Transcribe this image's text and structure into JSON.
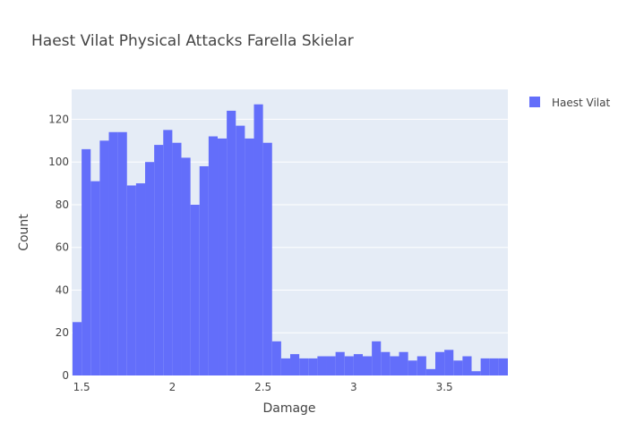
{
  "chart_data": {
    "type": "bar",
    "title": "Haest Vilat Physical Attacks Farella Skielar",
    "xlabel": "Damage",
    "ylabel": "Count",
    "xlim": [
      1.445,
      3.85
    ],
    "ylim": [
      0,
      134
    ],
    "x_ticks": [
      1.5,
      2,
      2.5,
      3,
      3.5
    ],
    "x_tick_labels": [
      "1.5",
      "2",
      "2.5",
      "3",
      "3.5"
    ],
    "y_ticks": [
      0,
      20,
      40,
      60,
      80,
      100,
      120
    ],
    "y_tick_labels": [
      "0",
      "20",
      "40",
      "60",
      "80",
      "100",
      "120"
    ],
    "grid": true,
    "legend_position": "top-right",
    "bin_start": 1.45,
    "bin_width": 0.05,
    "series": [
      {
        "name": "Haest Vilat",
        "color": "#636efa",
        "values": [
          25,
          106,
          91,
          110,
          114,
          114,
          89,
          90,
          100,
          108,
          115,
          109,
          102,
          80,
          98,
          112,
          111,
          124,
          117,
          111,
          127,
          109,
          16,
          8,
          10,
          8,
          8,
          9,
          9,
          11,
          9,
          10,
          9,
          16,
          11,
          9,
          11,
          7,
          9,
          3,
          11,
          12,
          7,
          9,
          2,
          8,
          8,
          8
        ]
      }
    ]
  },
  "colors": {
    "plot_background": "#e5ecf6",
    "grid": "#ffffff",
    "text": "#444444"
  }
}
